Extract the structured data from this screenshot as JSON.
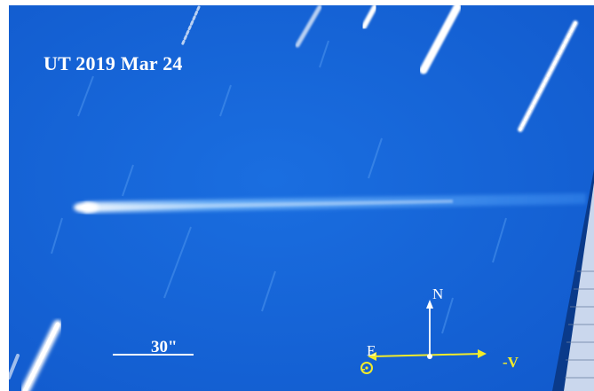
{
  "image": {
    "date_label": "UT 2019 Mar 24",
    "scale_label": "30\"",
    "compass": {
      "north": "N",
      "east": "E",
      "velocity": "-V",
      "sun": "-"
    }
  },
  "colors": {
    "sky": "#1565d8",
    "streak": "#ffffff",
    "annotation": "#f2ec2a"
  }
}
